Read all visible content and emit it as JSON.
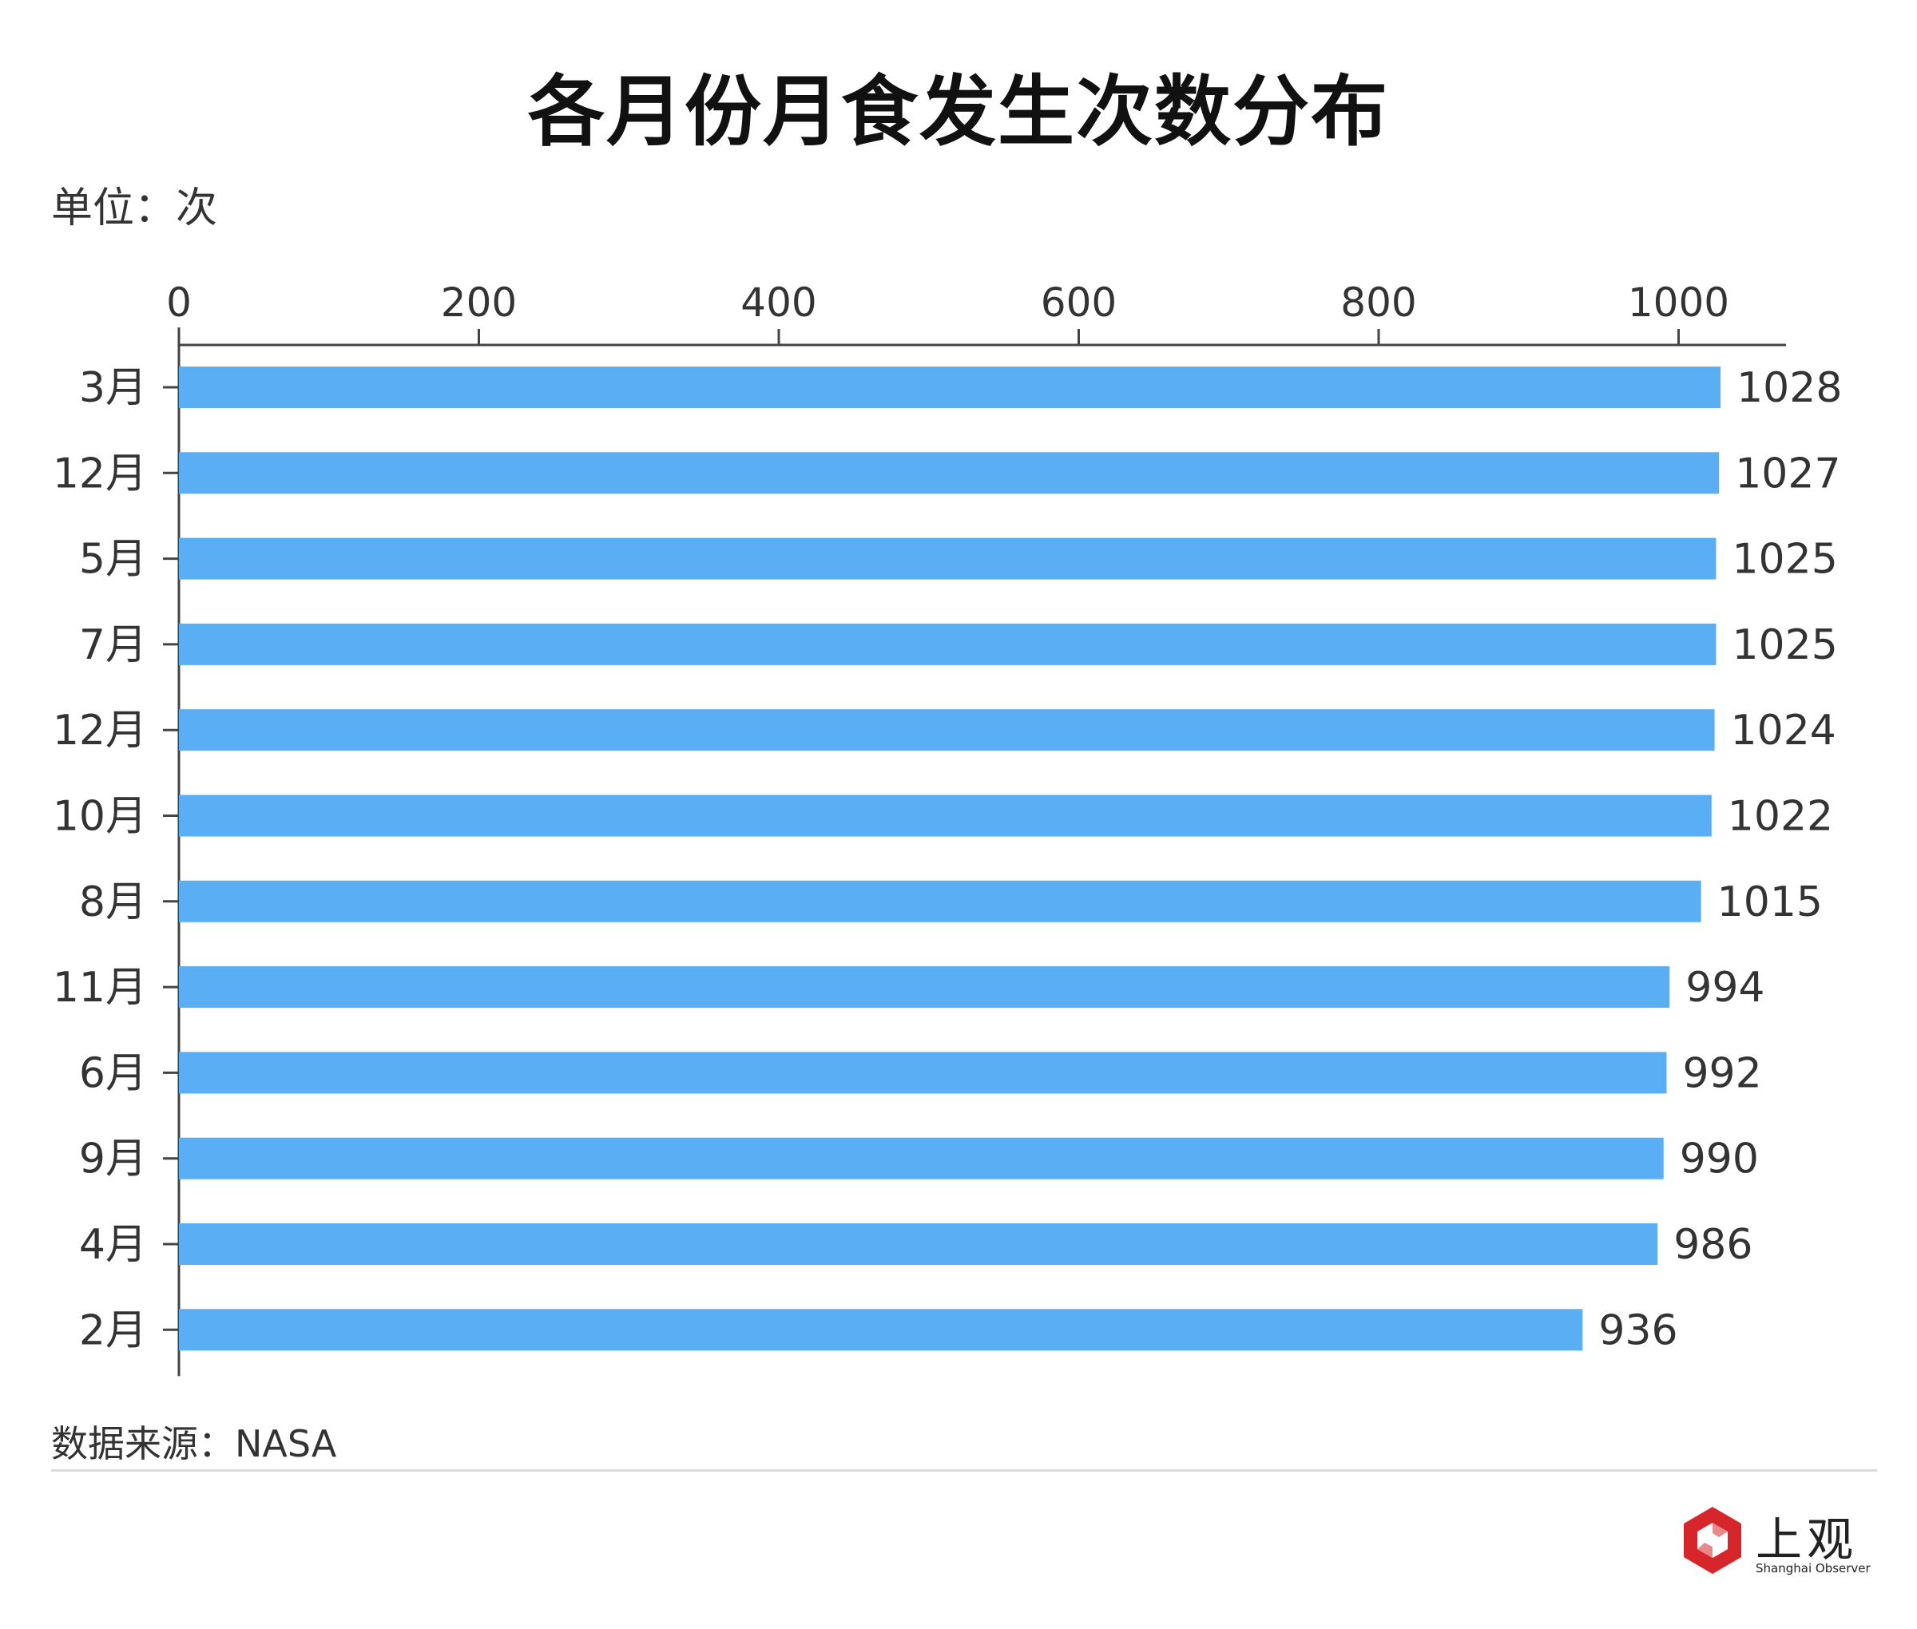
{
  "title": "各月份月食发生次数分布",
  "unit_label": "单位：次",
  "source_label": "数据来源：NASA",
  "logo": {
    "name_cn": "上观",
    "name_en": "Shanghai Observer",
    "icon": "shanghai-observer-logo-icon"
  },
  "colors": {
    "bar": "#5aaef3",
    "axis": "#444444",
    "text": "#333333",
    "logo": "#d6262c"
  },
  "chart_data": {
    "type": "bar",
    "orientation": "horizontal",
    "categories": [
      "3月",
      "12月",
      "5月",
      "7月",
      "12月",
      "10月",
      "8月",
      "11月",
      "6月",
      "9月",
      "4月",
      "2月"
    ],
    "values": [
      1028,
      1027,
      1025,
      1025,
      1024,
      1022,
      1015,
      994,
      992,
      990,
      986,
      936
    ],
    "data_labels": [
      "1028",
      "1027",
      "1025",
      "1025",
      "1024",
      "1022",
      "1015",
      "994",
      "992",
      "990",
      "986",
      "936"
    ],
    "x_ticks": [
      0,
      200,
      400,
      600,
      800,
      1000
    ],
    "x_tick_labels": [
      "0",
      "200",
      "400",
      "600",
      "800",
      "1000"
    ],
    "xlim": [
      0,
      1080
    ],
    "axis_position": "top",
    "grid": false,
    "legend": "none"
  }
}
